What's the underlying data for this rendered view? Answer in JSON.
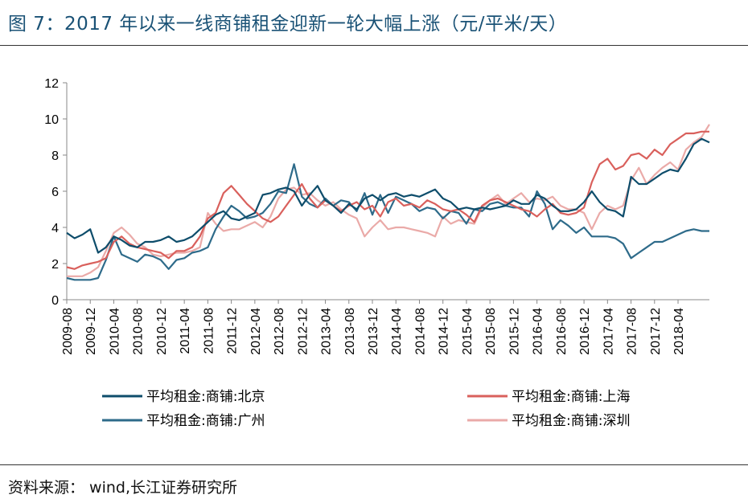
{
  "title": "图 7：2017 年以来一线商铺租金迎新一轮大幅上涨（元/平米/天）",
  "source": "资料来源： wind,长江证券研究所",
  "chart_data": {
    "type": "line",
    "title": "图 7：2017 年以来一线商铺租金迎新一轮大幅上涨（元/平米/天）",
    "xlabel": "",
    "ylabel": "",
    "ylim": [
      0,
      12
    ],
    "yticks": [
      "0",
      "2",
      "4",
      "6",
      "8",
      "10",
      "12"
    ],
    "grid": false,
    "legend_position": "bottom",
    "x_tick_labels": [
      "2009-08",
      "2009-12",
      "2010-04",
      "2010-08",
      "2010-12",
      "2011-04",
      "2011-08",
      "2011-12",
      "2012-04",
      "2012-08",
      "2012-12",
      "2013-04",
      "2013-08",
      "2013-12",
      "2014-04",
      "2014-08",
      "2014-12",
      "2015-04",
      "2015-08",
      "2015-12",
      "2016-04",
      "2016-08",
      "2016-12",
      "2017-04",
      "2017-08",
      "2017-12",
      "2018-04"
    ],
    "series": [
      {
        "name": "平均租金:商铺:北京",
        "color": "#0e4d6b",
        "values": [
          3.7,
          3.4,
          3.6,
          3.9,
          2.6,
          2.9,
          3.5,
          3.3,
          3.0,
          2.9,
          3.2,
          3.2,
          3.3,
          3.5,
          3.2,
          3.3,
          3.5,
          3.9,
          4.3,
          4.7,
          4.9,
          4.5,
          4.4,
          4.6,
          4.8,
          5.8,
          5.9,
          6.1,
          6.2,
          6.0,
          5.2,
          5.8,
          6.3,
          5.5,
          5.2,
          4.8,
          5.3,
          5.0,
          5.6,
          5.8,
          5.5,
          5.8,
          5.9,
          5.7,
          5.8,
          5.7,
          5.9,
          6.1,
          5.6,
          5.4,
          5.0,
          5.1,
          5.0,
          5.1,
          5.0,
          5.1,
          5.2,
          5.5,
          5.3,
          5.3,
          5.8,
          5.6,
          5.2,
          4.9,
          4.9,
          5.0,
          5.4,
          6.0,
          5.4,
          5.0,
          4.9,
          4.6,
          6.8,
          6.4,
          6.4,
          6.7,
          7.0,
          7.2,
          7.1,
          7.8,
          8.6,
          8.9,
          8.7
        ]
      },
      {
        "name": "平均租金:商铺:上海",
        "color": "#d9605c",
        "values": [
          1.8,
          1.7,
          1.9,
          2.0,
          2.1,
          2.3,
          3.2,
          3.5,
          3.1,
          2.9,
          2.8,
          2.7,
          2.6,
          2.3,
          2.7,
          2.7,
          2.9,
          3.5,
          4.5,
          4.8,
          5.9,
          6.3,
          5.8,
          5.3,
          4.9,
          4.5,
          4.3,
          4.6,
          5.2,
          5.8,
          6.4,
          5.6,
          5.1,
          5.5,
          5.2,
          4.9,
          5.2,
          5.4,
          5.0,
          5.2,
          4.6,
          5.4,
          5.6,
          5.2,
          5.3,
          5.1,
          5.5,
          5.3,
          5.0,
          4.9,
          5.0,
          4.7,
          4.3,
          5.2,
          5.5,
          5.6,
          5.4,
          5.2,
          5.0,
          4.9,
          4.6,
          5.0,
          5.3,
          4.8,
          4.7,
          4.8,
          5.1,
          6.5,
          7.5,
          7.8,
          7.2,
          7.4,
          8.0,
          8.1,
          7.8,
          8.3,
          8.0,
          8.6,
          8.9,
          9.2,
          9.2,
          9.3,
          9.3
        ]
      },
      {
        "name": "平均租金:商铺:广州",
        "color": "#2e6b8a",
        "values": [
          1.2,
          1.1,
          1.1,
          1.1,
          1.2,
          2.2,
          3.5,
          2.5,
          2.3,
          2.1,
          2.5,
          2.4,
          2.2,
          1.7,
          2.2,
          2.3,
          2.6,
          2.7,
          2.9,
          3.9,
          4.6,
          5.2,
          4.9,
          4.5,
          4.6,
          4.8,
          5.3,
          6.0,
          5.9,
          7.5,
          5.7,
          5.3,
          5.1,
          5.6,
          5.2,
          5.5,
          5.4,
          4.9,
          5.9,
          4.7,
          5.8,
          4.8,
          5.7,
          5.5,
          5.3,
          4.9,
          5.1,
          5.0,
          4.5,
          4.9,
          4.8,
          4.2,
          5.0,
          4.9,
          5.3,
          5.4,
          5.2,
          5.1,
          5.1,
          4.6,
          6.0,
          5.3,
          3.9,
          4.4,
          4.1,
          3.7,
          4.0,
          3.5,
          3.5,
          3.5,
          3.4,
          3.1,
          2.3,
          2.6,
          2.9,
          3.2,
          3.2,
          3.4,
          3.6,
          3.8,
          3.9,
          3.8,
          3.8
        ]
      },
      {
        "name": "平均租金:商铺:深圳",
        "color": "#eaaaa8",
        "values": [
          1.3,
          1.3,
          1.3,
          1.5,
          1.8,
          2.7,
          3.7,
          4.0,
          3.6,
          3.1,
          2.9,
          2.5,
          2.4,
          2.5,
          2.6,
          2.6,
          2.7,
          2.9,
          4.8,
          4.2,
          3.8,
          3.9,
          3.9,
          4.1,
          4.3,
          4.0,
          4.6,
          5.6,
          6.1,
          6.2,
          5.8,
          5.9,
          5.5,
          5.2,
          5.4,
          5.0,
          4.7,
          4.5,
          3.5,
          4.0,
          4.4,
          3.9,
          4.0,
          4.0,
          3.9,
          3.8,
          3.7,
          3.5,
          4.6,
          4.2,
          4.4,
          4.3,
          4.2,
          5.1,
          5.5,
          5.8,
          5.3,
          5.6,
          5.9,
          5.4,
          5.6,
          5.5,
          5.7,
          5.2,
          5.0,
          5.0,
          4.8,
          3.9,
          4.8,
          5.2,
          5.0,
          5.2,
          6.6,
          7.3,
          6.4,
          6.9,
          7.3,
          7.6,
          7.2,
          8.3,
          8.7,
          9.0,
          9.7
        ]
      }
    ]
  }
}
